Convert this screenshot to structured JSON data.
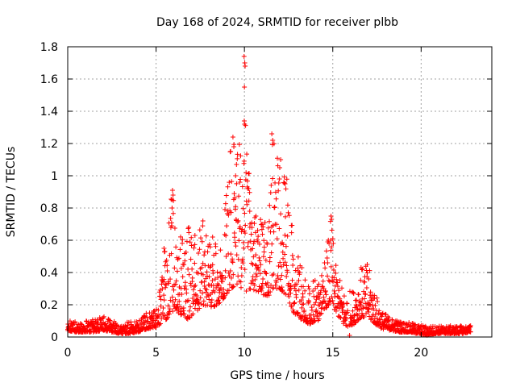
{
  "chart_data": {
    "type": "scatter",
    "title": "Day 168 of 2024, SRMTID for receiver plbb",
    "xlabel": "GPS time / hours",
    "ylabel": "SRMTID / TECUs",
    "xlim": [
      0,
      24
    ],
    "ylim": [
      0,
      1.8
    ],
    "x_ticks": [
      0,
      5,
      10,
      15,
      20
    ],
    "x_tick_labels": [
      "0",
      "5",
      "10",
      "15",
      "20"
    ],
    "y_ticks": [
      0,
      0.2,
      0.4,
      0.6,
      0.8,
      1.0,
      1.2,
      1.4,
      1.6,
      1.8
    ],
    "y_tick_labels": [
      "0",
      "0.2",
      "0.4",
      "0.6",
      "0.8",
      "1",
      "1.2",
      "1.4",
      "1.6",
      "1.8"
    ],
    "grid": true,
    "marker": "+",
    "series": [
      {
        "name": "SRMTID",
        "color": "#ff0000",
        "envelope": [
          [
            0.0,
            0.04,
            0.1
          ],
          [
            0.5,
            0.03,
            0.1
          ],
          [
            1.0,
            0.03,
            0.1
          ],
          [
            1.5,
            0.03,
            0.11
          ],
          [
            2.0,
            0.04,
            0.13
          ],
          [
            2.5,
            0.03,
            0.1
          ],
          [
            3.0,
            0.02,
            0.09
          ],
          [
            3.5,
            0.02,
            0.1
          ],
          [
            4.0,
            0.03,
            0.1
          ],
          [
            4.5,
            0.05,
            0.16
          ],
          [
            5.0,
            0.06,
            0.17
          ],
          [
            5.5,
            0.1,
            0.55
          ],
          [
            5.9,
            0.15,
            0.91
          ],
          [
            6.3,
            0.14,
            0.62
          ],
          [
            6.8,
            0.11,
            0.68
          ],
          [
            7.2,
            0.14,
            0.6
          ],
          [
            7.7,
            0.2,
            0.72
          ],
          [
            8.2,
            0.18,
            0.62
          ],
          [
            8.7,
            0.22,
            0.55
          ],
          [
            9.2,
            0.3,
            1.24
          ],
          [
            9.7,
            0.32,
            1.3
          ],
          [
            10.0,
            0.28,
            1.74
          ],
          [
            10.4,
            0.3,
            0.78
          ],
          [
            10.8,
            0.28,
            0.75
          ],
          [
            11.3,
            0.24,
            0.7
          ],
          [
            11.6,
            0.3,
            1.26
          ],
          [
            12.0,
            0.3,
            1.1
          ],
          [
            12.4,
            0.25,
            1.02
          ],
          [
            12.8,
            0.15,
            0.62
          ],
          [
            13.2,
            0.1,
            0.42
          ],
          [
            13.7,
            0.08,
            0.33
          ],
          [
            14.2,
            0.1,
            0.4
          ],
          [
            14.6,
            0.18,
            0.52
          ],
          [
            14.9,
            0.2,
            0.75
          ],
          [
            15.2,
            0.15,
            0.42
          ],
          [
            15.7,
            0.06,
            0.28
          ],
          [
            16.2,
            0.08,
            0.3
          ],
          [
            16.6,
            0.12,
            0.43
          ],
          [
            17.0,
            0.12,
            0.45
          ],
          [
            17.4,
            0.08,
            0.28
          ],
          [
            17.8,
            0.05,
            0.16
          ],
          [
            18.3,
            0.04,
            0.12
          ],
          [
            18.8,
            0.03,
            0.1
          ],
          [
            19.3,
            0.03,
            0.09
          ],
          [
            19.8,
            0.02,
            0.08
          ],
          [
            20.3,
            0.01,
            0.07
          ],
          [
            20.8,
            0.02,
            0.07
          ],
          [
            21.3,
            0.02,
            0.07
          ],
          [
            21.8,
            0.02,
            0.07
          ],
          [
            22.3,
            0.02,
            0.07
          ],
          [
            22.8,
            0.03,
            0.07
          ]
        ],
        "points": [
          [
            9.98,
            1.74
          ],
          [
            10.02,
            1.7
          ],
          [
            10.04,
            1.68
          ],
          [
            10.0,
            1.55
          ],
          [
            9.99,
            1.34
          ],
          [
            10.01,
            1.32
          ],
          [
            9.35,
            1.24
          ],
          [
            9.4,
            1.18
          ],
          [
            11.55,
            1.26
          ],
          [
            11.6,
            1.22
          ],
          [
            12.05,
            1.1
          ],
          [
            12.0,
            1.05
          ],
          [
            9.55,
            1.07
          ],
          [
            9.5,
            1.0
          ],
          [
            12.3,
            0.95
          ],
          [
            5.93,
            0.91
          ],
          [
            5.96,
            0.88
          ],
          [
            5.9,
            0.85
          ],
          [
            14.9,
            0.75
          ],
          [
            14.93,
            0.73
          ],
          [
            10.3,
            0.78
          ],
          [
            10.65,
            0.75
          ],
          [
            11.0,
            0.7
          ],
          [
            7.65,
            0.72
          ],
          [
            6.85,
            0.68
          ],
          [
            7.2,
            0.63
          ],
          [
            8.2,
            0.62
          ],
          [
            15.95,
            0.01
          ],
          [
            16.95,
            0.45
          ],
          [
            16.6,
            0.43
          ],
          [
            13.25,
            0.43
          ],
          [
            22.8,
            0.07
          ],
          [
            5.45,
            0.55
          ],
          [
            5.5,
            0.53
          ],
          [
            0.02,
            0.08
          ],
          [
            0.08,
            0.06
          ]
        ]
      }
    ]
  }
}
